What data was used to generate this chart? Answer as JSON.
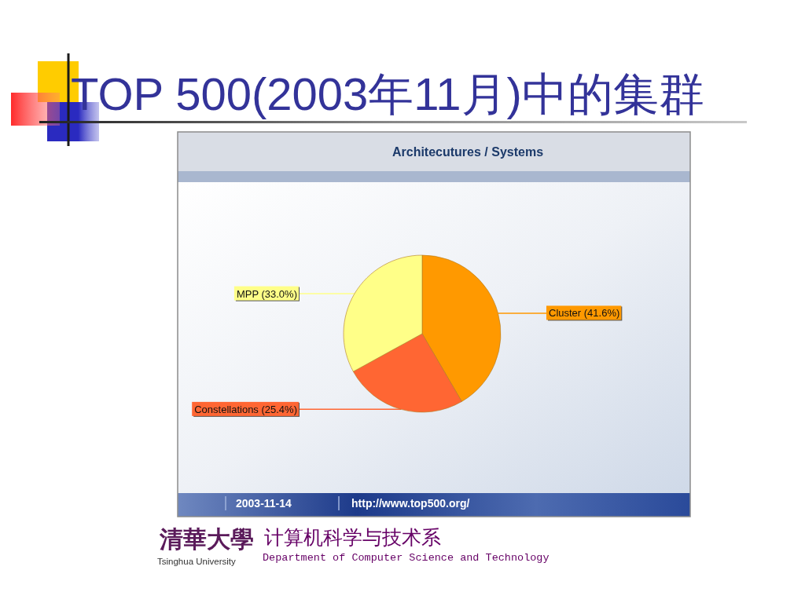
{
  "chart_data": {
    "type": "pie",
    "title": "TOP 500(2003年11月)中的集群",
    "subtitle": "Architecutures / Systems",
    "categories": [
      "Cluster",
      "Constellations",
      "MPP"
    ],
    "values": [
      41.6,
      25.4,
      33.0
    ],
    "colors": [
      "#ff9900",
      "#ff6633",
      "#ffff88"
    ],
    "value_labels": [
      "(41.6%)",
      "(25.4%)",
      "(33.0%)"
    ],
    "annotations": [
      "2003-11-14",
      "http://www.top500.org/",
      "清華大學",
      "Tsinghua University",
      "计算机科学与技术系",
      "Department of Computer Science and Technology"
    ]
  }
}
